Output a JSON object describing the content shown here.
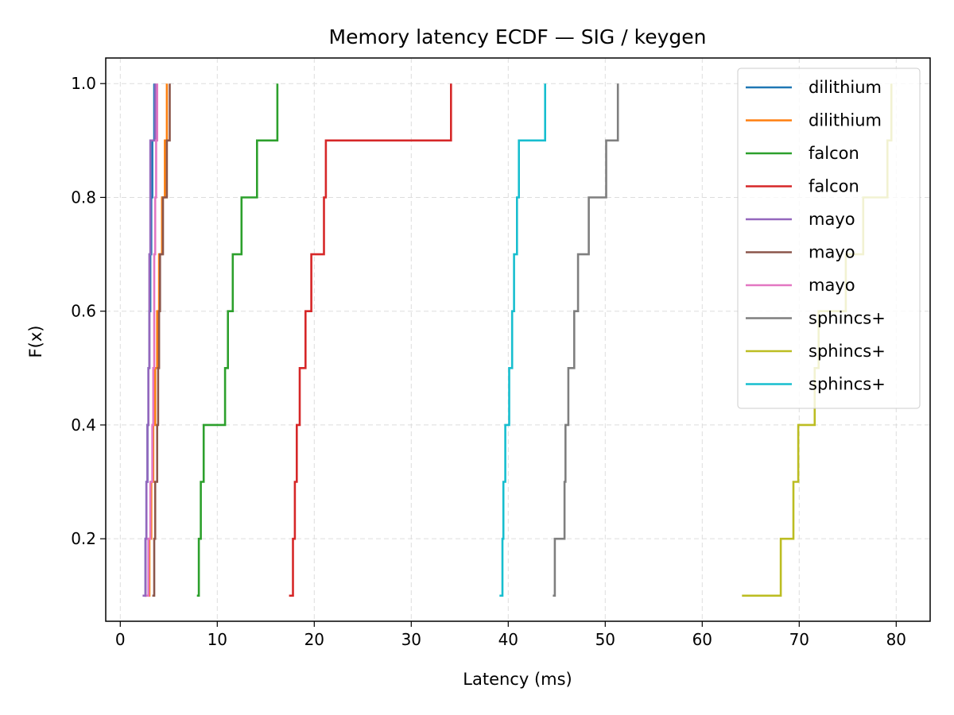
{
  "chart_data": {
    "type": "line",
    "title": "Memory latency ECDF — SIG / keygen",
    "xlabel": "Latency (ms)",
    "ylabel": "F(x)",
    "xlim": [
      -1.5,
      83.5
    ],
    "ylim": [
      0.055,
      1.045
    ],
    "xticks": [
      0,
      10,
      20,
      30,
      40,
      50,
      60,
      70,
      80
    ],
    "yticks": [
      0.2,
      0.4,
      0.6,
      0.8,
      1.0
    ],
    "ytick_labels": [
      "0.2",
      "0.4",
      "0.6",
      "0.8",
      "1.0"
    ],
    "grid": true,
    "legend_position": "upper right",
    "step": "post",
    "series": [
      {
        "name": "dilithium",
        "color": "#1f77b4",
        "x": [
          2.5,
          2.6,
          2.7,
          2.8,
          2.9,
          3.0,
          3.1,
          3.2,
          3.3,
          3.5
        ]
      },
      {
        "name": "dilithium",
        "color": "#ff7f0e",
        "x": [
          2.9,
          3.0,
          3.2,
          3.4,
          3.6,
          3.8,
          4.0,
          4.3,
          4.6,
          4.8
        ]
      },
      {
        "name": "falcon",
        "color": "#2ca02c",
        "x": [
          7.9,
          8.1,
          8.3,
          8.6,
          10.8,
          11.1,
          11.6,
          12.5,
          14.1,
          16.2
        ]
      },
      {
        "name": "falcon",
        "color": "#d62728",
        "x": [
          17.4,
          17.8,
          18.0,
          18.2,
          18.5,
          19.1,
          19.7,
          21.0,
          21.2,
          34.1
        ]
      },
      {
        "name": "mayo",
        "color": "#9467bd",
        "x": [
          2.3,
          2.6,
          2.7,
          2.8,
          2.9,
          3.0,
          3.0,
          3.1,
          3.1,
          3.6
        ]
      },
      {
        "name": "mayo",
        "color": "#8c564b",
        "x": [
          3.3,
          3.5,
          3.6,
          3.8,
          3.9,
          4.0,
          4.1,
          4.4,
          4.8,
          5.1
        ]
      },
      {
        "name": "mayo",
        "color": "#e377c2",
        "x": [
          2.7,
          2.9,
          3.1,
          3.3,
          3.4,
          3.5,
          3.5,
          3.6,
          3.7,
          3.8
        ]
      },
      {
        "name": "sphincs+",
        "color": "#7f7f7f",
        "x": [
          44.6,
          44.8,
          45.8,
          45.9,
          46.2,
          46.8,
          47.2,
          48.3,
          50.1,
          51.3
        ]
      },
      {
        "name": "sphincs+",
        "color": "#bcbd22",
        "x": [
          64.1,
          68.1,
          69.4,
          69.9,
          71.6,
          72.0,
          74.8,
          76.6,
          79.1,
          79.5
        ]
      },
      {
        "name": "sphincs+",
        "color": "#17becf",
        "x": [
          39.1,
          39.4,
          39.5,
          39.7,
          40.1,
          40.4,
          40.6,
          40.9,
          41.1,
          43.8
        ]
      }
    ]
  }
}
